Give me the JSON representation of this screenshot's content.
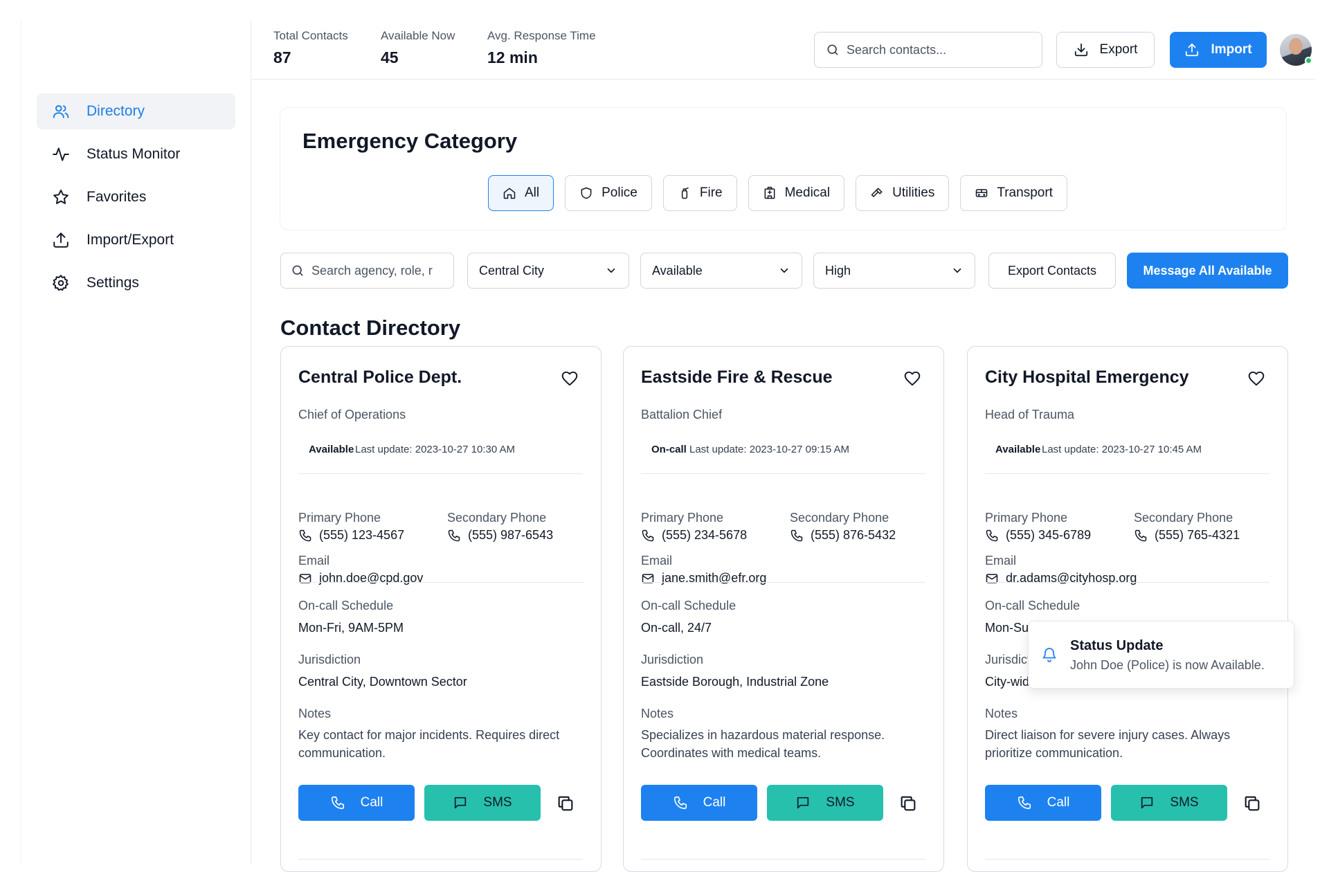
{
  "sidebar": {
    "items": [
      {
        "label": "Directory",
        "icon": "users-icon"
      },
      {
        "label": "Status Monitor",
        "icon": "activity-icon"
      },
      {
        "label": "Favorites",
        "icon": "star-icon"
      },
      {
        "label": "Import/Export",
        "icon": "upload-icon"
      },
      {
        "label": "Settings",
        "icon": "gear-icon"
      }
    ]
  },
  "header": {
    "stats": [
      {
        "label": "Total Contacts",
        "value": "87"
      },
      {
        "label": "Available Now",
        "value": "45"
      },
      {
        "label": "Avg. Response Time",
        "value": "12 min"
      }
    ],
    "search_placeholder": "Search contacts...",
    "export_label": "Export",
    "import_label": "Import"
  },
  "category": {
    "title": "Emergency Category",
    "chips": [
      {
        "label": "All",
        "icon": "home-icon"
      },
      {
        "label": "Police",
        "icon": "shield-icon"
      },
      {
        "label": "Fire",
        "icon": "fire-extinguisher-icon"
      },
      {
        "label": "Medical",
        "icon": "hospital-icon"
      },
      {
        "label": "Utilities",
        "icon": "hammer-icon"
      },
      {
        "label": "Transport",
        "icon": "bus-icon"
      }
    ]
  },
  "filters": {
    "search_placeholder": "Search agency, role, r",
    "location": "Central City",
    "status": "Available",
    "priority": "High",
    "export_label": "Export Contacts",
    "message_label": "Message All Available"
  },
  "directory": {
    "title": "Contact Directory",
    "labels": {
      "primary_phone": "Primary Phone",
      "secondary_phone": "Secondary Phone",
      "email": "Email",
      "schedule": "On-call Schedule",
      "jurisdiction": "Jurisdiction",
      "notes": "Notes",
      "call": "Call",
      "sms": "SMS"
    },
    "contacts": [
      {
        "name": "Central Police Dept.",
        "role": "Chief of Operations",
        "status": "Available",
        "updated": "Last update: 2023-10-27 10:30 AM",
        "primary_phone": "(555) 123-4567",
        "secondary_phone": "(555) 987-6543",
        "email": "john.doe@cpd.gov",
        "schedule": "Mon-Fri, 9AM-5PM",
        "jurisdiction": "Central City, Downtown Sector",
        "notes": "Key contact for major incidents. Requires direct communication."
      },
      {
        "name": "Eastside Fire & Rescue",
        "role": "Battalion Chief",
        "status": "On-call",
        "updated": "Last update: 2023-10-27 09:15 AM",
        "primary_phone": "(555) 234-5678",
        "secondary_phone": "(555) 876-5432",
        "email": "jane.smith@efr.org",
        "schedule": "On-call, 24/7",
        "jurisdiction": "Eastside Borough, Industrial Zone",
        "notes": "Specializes in hazardous material response. Coordinates with medical teams."
      },
      {
        "name": "City Hospital Emergency",
        "role": "Head of Trauma",
        "status": "Available",
        "updated": "Last update: 2023-10-27 10:45 AM",
        "primary_phone": "(555) 345-6789",
        "secondary_phone": "(555) 765-4321",
        "email": "dr.adams@cityhosp.org",
        "schedule": "Mon-Sun",
        "jurisdiction": "City-wide",
        "notes": "Direct liaison for severe injury cases. Always prioritize communication."
      }
    ]
  },
  "toast": {
    "title": "Status Update",
    "message": "John Doe (Police) is now Available."
  },
  "colors": {
    "accent": "#1d82f0",
    "sms": "#26c0ad",
    "online": "#22c55e"
  }
}
